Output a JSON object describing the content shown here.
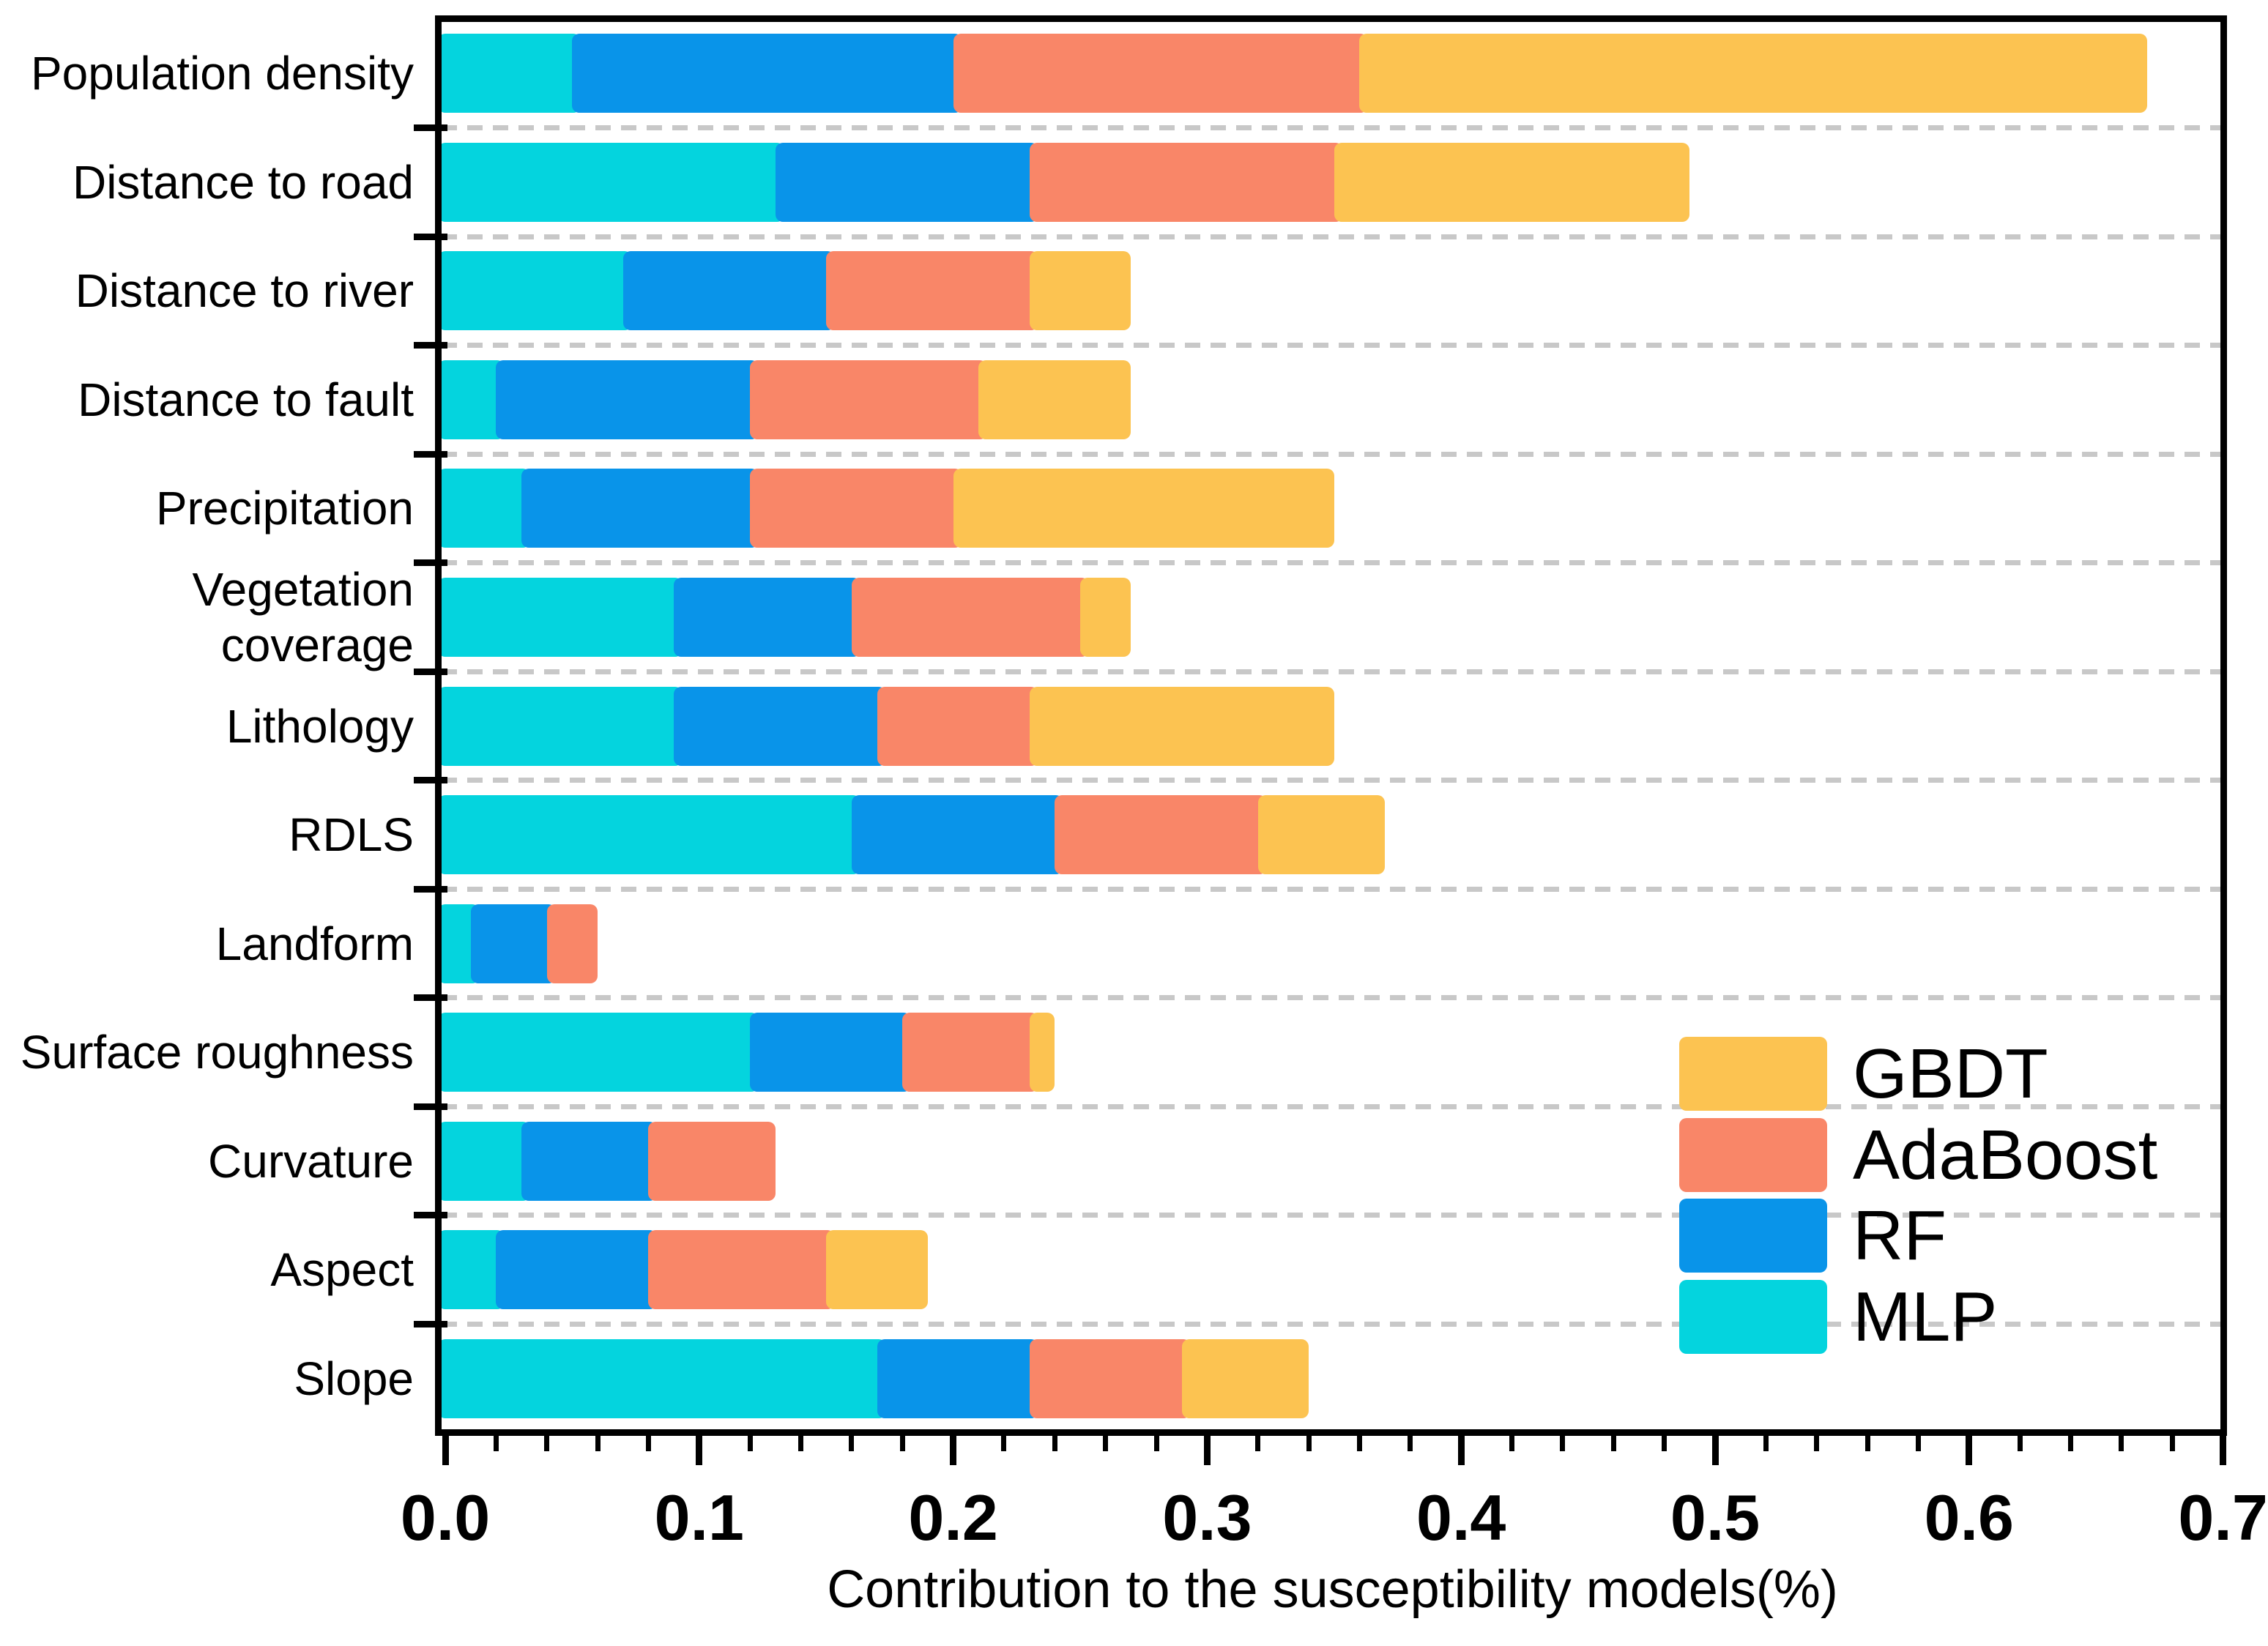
{
  "chart_data": {
    "type": "bar",
    "orientation": "horizontal-stacked",
    "title": "",
    "xlabel": "Contribution to the susceptibility models(%)",
    "ylabel": "",
    "xlim": [
      0,
      0.7
    ],
    "x_major_ticks": [
      "0.0",
      "0.1",
      "0.2",
      "0.3",
      "0.4",
      "0.5",
      "0.6",
      "0.7"
    ],
    "x_major_tick_values": [
      0.0,
      0.1,
      0.2,
      0.3,
      0.4,
      0.5,
      0.6,
      0.7
    ],
    "x_minor_tick_step": 0.02,
    "grid": "dashed horizontal separators between categories",
    "legend_position": "inside lower right",
    "legend_order": [
      "GBDT",
      "AdaBoost",
      "RF",
      "MLP"
    ],
    "categories": [
      "Population density",
      "Distance to road",
      "Distance to river",
      "Distance to fault",
      "Precipitation",
      "Vegetation coverage",
      "Lithology",
      "RDLS",
      "Landform",
      "Surface roughness",
      "Curvature",
      "Aspect",
      "Slope"
    ],
    "category_label_lines": [
      [
        "Population density"
      ],
      [
        "Distance to road"
      ],
      [
        "Distance to river"
      ],
      [
        "Distance to fault"
      ],
      [
        "Precipitation"
      ],
      [
        "Vegetation",
        "coverage"
      ],
      [
        "Lithology"
      ],
      [
        "RDLS"
      ],
      [
        "Landform"
      ],
      [
        "Surface roughness"
      ],
      [
        "Curvature"
      ],
      [
        "Aspect"
      ],
      [
        "Slope"
      ]
    ],
    "series": [
      {
        "name": "MLP",
        "color": "#04D4DE",
        "values": [
          0.05,
          0.13,
          0.07,
          0.02,
          0.03,
          0.09,
          0.09,
          0.16,
          0.01,
          0.12,
          0.03,
          0.02,
          0.17
        ]
      },
      {
        "name": "RF",
        "color": "#0994E9",
        "values": [
          0.15,
          0.1,
          0.08,
          0.1,
          0.09,
          0.07,
          0.08,
          0.08,
          0.03,
          0.06,
          0.05,
          0.06,
          0.06
        ]
      },
      {
        "name": "AdaBoost",
        "color": "#F98668",
        "values": [
          0.16,
          0.12,
          0.08,
          0.09,
          0.08,
          0.09,
          0.06,
          0.08,
          0.02,
          0.05,
          0.05,
          0.07,
          0.06
        ]
      },
      {
        "name": "GBDT",
        "color": "#FCC351",
        "values": [
          0.31,
          0.14,
          0.04,
          0.06,
          0.15,
          0.02,
          0.12,
          0.05,
          0.0,
          0.01,
          0.0,
          0.04,
          0.05
        ]
      }
    ],
    "stack_order_bottom_to_top": [
      "MLP",
      "RF",
      "AdaBoost",
      "GBDT"
    ],
    "colors": {
      "axis": "#000000",
      "gridline": "#c8c8c8",
      "background": "#ffffff"
    }
  }
}
